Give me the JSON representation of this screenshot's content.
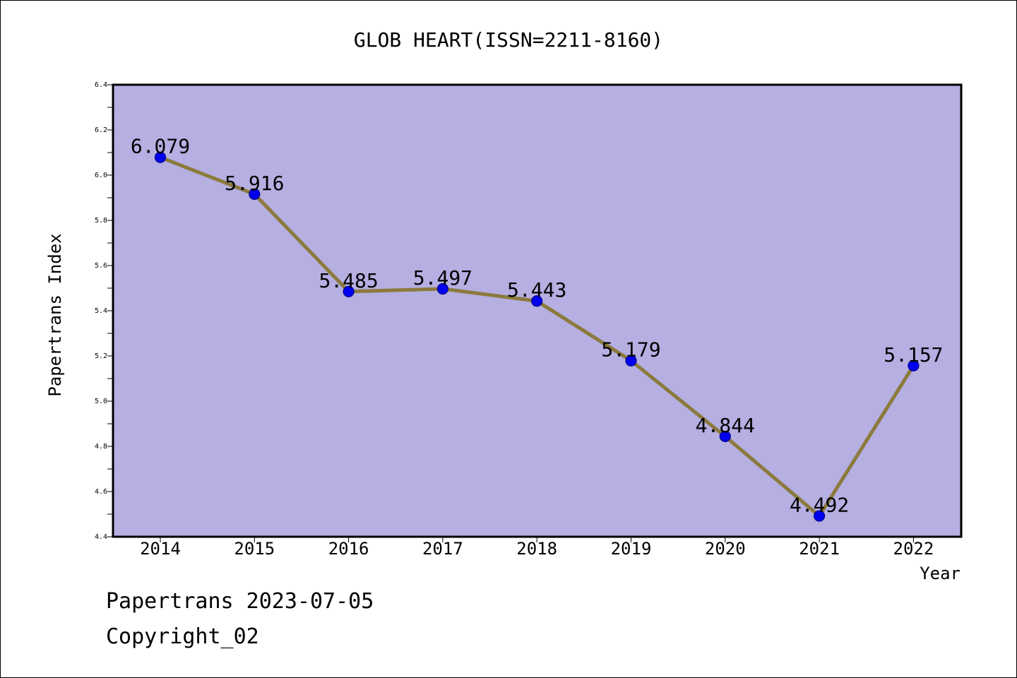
{
  "chart_data": {
    "type": "line",
    "title": "GLOB HEART(ISSN=2211-8160)",
    "xlabel": "Year",
    "ylabel": "Papertrans Index",
    "categories": [
      "2014",
      "2015",
      "2016",
      "2017",
      "2018",
      "2019",
      "2020",
      "2021",
      "2022"
    ],
    "values": [
      6.079,
      5.916,
      5.485,
      5.497,
      5.443,
      5.179,
      4.844,
      4.492,
      5.157
    ],
    "value_labels": [
      "6.079",
      "5.916",
      "5.485",
      "5.497",
      "5.443",
      "5.179",
      "4.844",
      "4.492",
      "5.157"
    ],
    "ylim": [
      4.4,
      6.4
    ],
    "yticks": [
      4.4,
      4.6,
      4.8,
      5.0,
      5.2,
      5.4,
      5.6,
      5.8,
      6.0,
      6.2,
      6.4
    ],
    "ytick_labels": [
      "4.4",
      "4.6",
      "4.8",
      "5.0",
      "5.2",
      "5.4",
      "5.6",
      "5.8",
      "6.0",
      "6.2",
      "6.4"
    ],
    "grid": false,
    "colors": {
      "plot_background": "#b5afe2",
      "line": "#8b7a3c",
      "marker": "#0000ee",
      "marker_edge": "#00008b",
      "axis": "#000000"
    }
  },
  "footer": {
    "line1": "Papertrans 2023-07-05",
    "line2": "Copyright_02"
  }
}
